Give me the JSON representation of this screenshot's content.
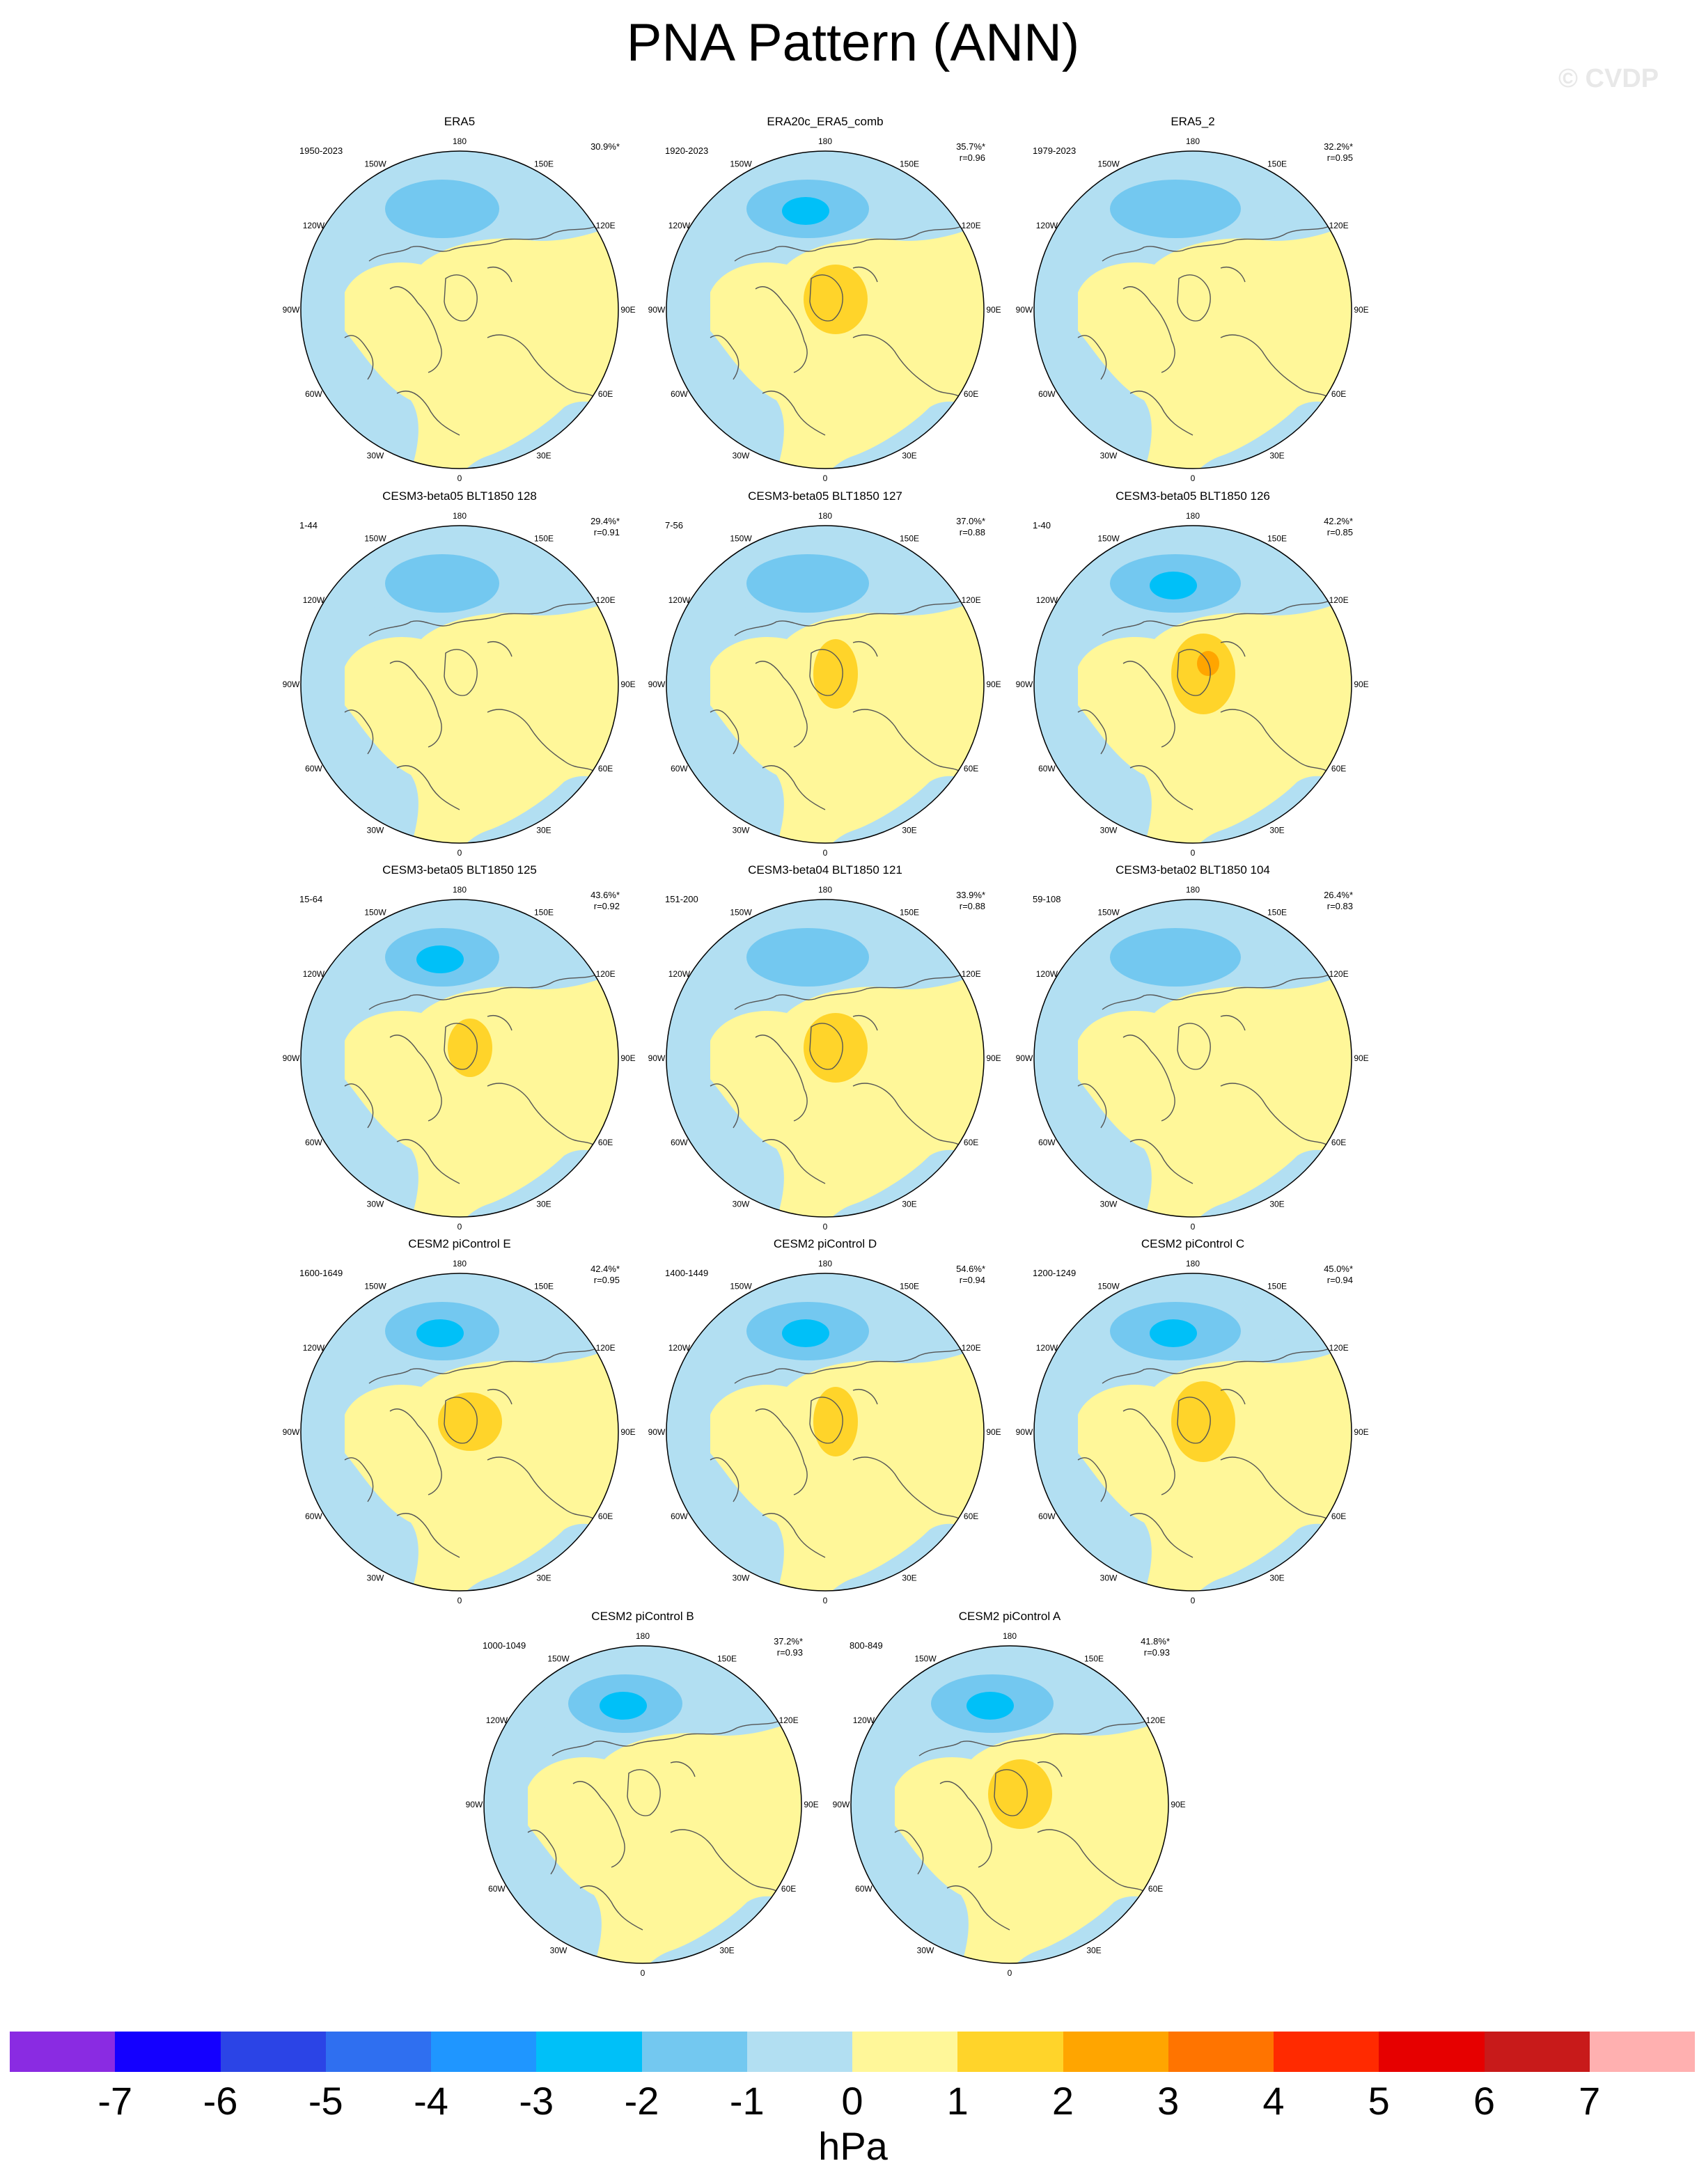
{
  "title": "PNA Pattern (ANN)",
  "watermark": "© CVDP",
  "colors": {
    "ocean_negative": "#b2dff2",
    "land_positive": "#fff799",
    "coast": "#555555",
    "neg2": "#73c8f0",
    "neg3": "#00c0f8",
    "pos1": "#ffd42a",
    "pos2": "#ffa500"
  },
  "longitude_labels": [
    "180",
    "150E",
    "120E",
    "90E",
    "60E",
    "30E",
    "0",
    "30W",
    "60W",
    "90W",
    "120W",
    "150W"
  ],
  "panels": [
    {
      "title": "ERA5",
      "years": "1950-2023",
      "pct": "30.9%*",
      "r": ""
    },
    {
      "title": "ERA20c_ERA5_comb",
      "years": "1920-2023",
      "pct": "35.7%*",
      "r": "r=0.96"
    },
    {
      "title": "ERA5_2",
      "years": "1979-2023",
      "pct": "32.2%*",
      "r": "r=0.95"
    },
    {
      "title": "CESM3-beta05 BLT1850 128",
      "years": "1-44",
      "pct": "29.4%*",
      "r": "r=0.91"
    },
    {
      "title": "CESM3-beta05 BLT1850 127",
      "years": "7-56",
      "pct": "37.0%*",
      "r": "r=0.88"
    },
    {
      "title": "CESM3-beta05 BLT1850 126",
      "years": "1-40",
      "pct": "42.2%*",
      "r": "r=0.85"
    },
    {
      "title": "CESM3-beta05 BLT1850 125",
      "years": "15-64",
      "pct": "43.6%*",
      "r": "r=0.92"
    },
    {
      "title": "CESM3-beta04 BLT1850 121",
      "years": "151-200",
      "pct": "33.9%*",
      "r": "r=0.88"
    },
    {
      "title": "CESM3-beta02 BLT1850 104",
      "years": "59-108",
      "pct": "26.4%*",
      "r": "r=0.83"
    },
    {
      "title": "CESM2 piControl E",
      "years": "1600-1649",
      "pct": "42.4%*",
      "r": "r=0.95"
    },
    {
      "title": "CESM2 piControl D",
      "years": "1400-1449",
      "pct": "54.6%*",
      "r": "r=0.94"
    },
    {
      "title": "CESM2 piControl C",
      "years": "1200-1249",
      "pct": "45.0%*",
      "r": "r=0.94"
    },
    {
      "title": "CESM2 piControl B",
      "years": "1000-1049",
      "pct": "37.2%*",
      "r": "r=0.93"
    },
    {
      "title": "CESM2 piControl A",
      "years": "800-849",
      "pct": "41.8%*",
      "r": "r=0.93"
    }
  ],
  "colorbar": {
    "colors": [
      "#8a2be2",
      "#1400ff",
      "#2b44e6",
      "#2f6ff0",
      "#1f96ff",
      "#00c0f8",
      "#73c8f0",
      "#b2dff2",
      "#fff799",
      "#ffd42a",
      "#ffa500",
      "#ff7400",
      "#ff2a00",
      "#e60000",
      "#c81a1a",
      "#ffb0b0"
    ],
    "ticks": [
      "-7",
      "-6",
      "-5",
      "-4",
      "-3",
      "-2",
      "-1",
      "0",
      "1",
      "2",
      "3",
      "4",
      "5",
      "6",
      "7"
    ],
    "units": "hPa"
  }
}
